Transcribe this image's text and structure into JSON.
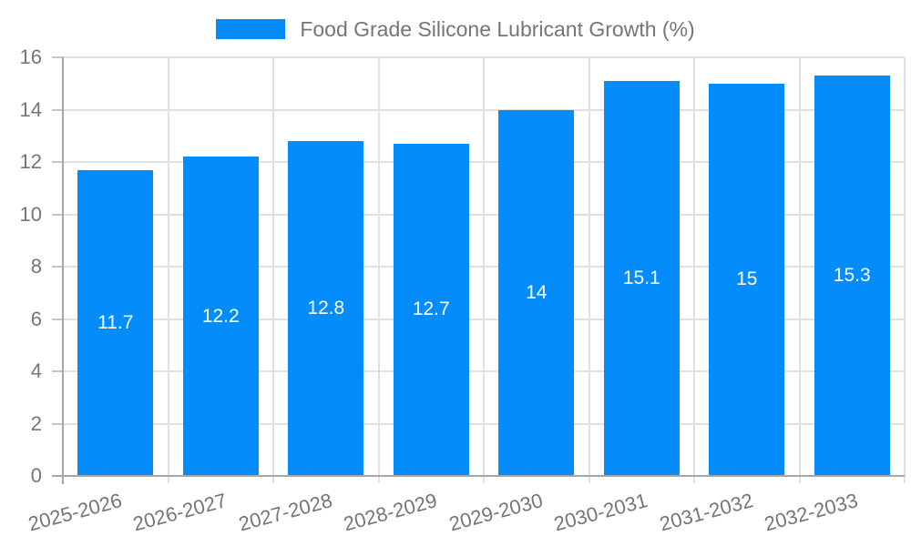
{
  "legend": {
    "position": "top",
    "series_label": "Food Grade Silicone Lubricant Growth (%)"
  },
  "chart_data": {
    "type": "bar",
    "title": "Food Grade Silicone Lubricant Growth (%)",
    "categories": [
      "2025-2026",
      "2026-2027",
      "2027-2028",
      "2028-2029",
      "2029-2030",
      "2030-2031",
      "2031-2032",
      "2032-2033"
    ],
    "values": [
      11.7,
      12.2,
      12.8,
      12.7,
      14,
      15.1,
      15,
      15.3
    ],
    "xlabel": "",
    "ylabel": "",
    "ylim": [
      0,
      16
    ],
    "yticks": [
      0,
      2,
      4,
      6,
      8,
      10,
      12,
      14,
      16
    ],
    "grid": true,
    "legend_position": "top",
    "bar_color": "#048cfb",
    "value_label_color": "#ffffff",
    "axis_label_color": "#757575",
    "grid_color": "#e0e0e0",
    "tick_color": "#c4c4c4",
    "axis_line_color": "#a6a6a6"
  }
}
